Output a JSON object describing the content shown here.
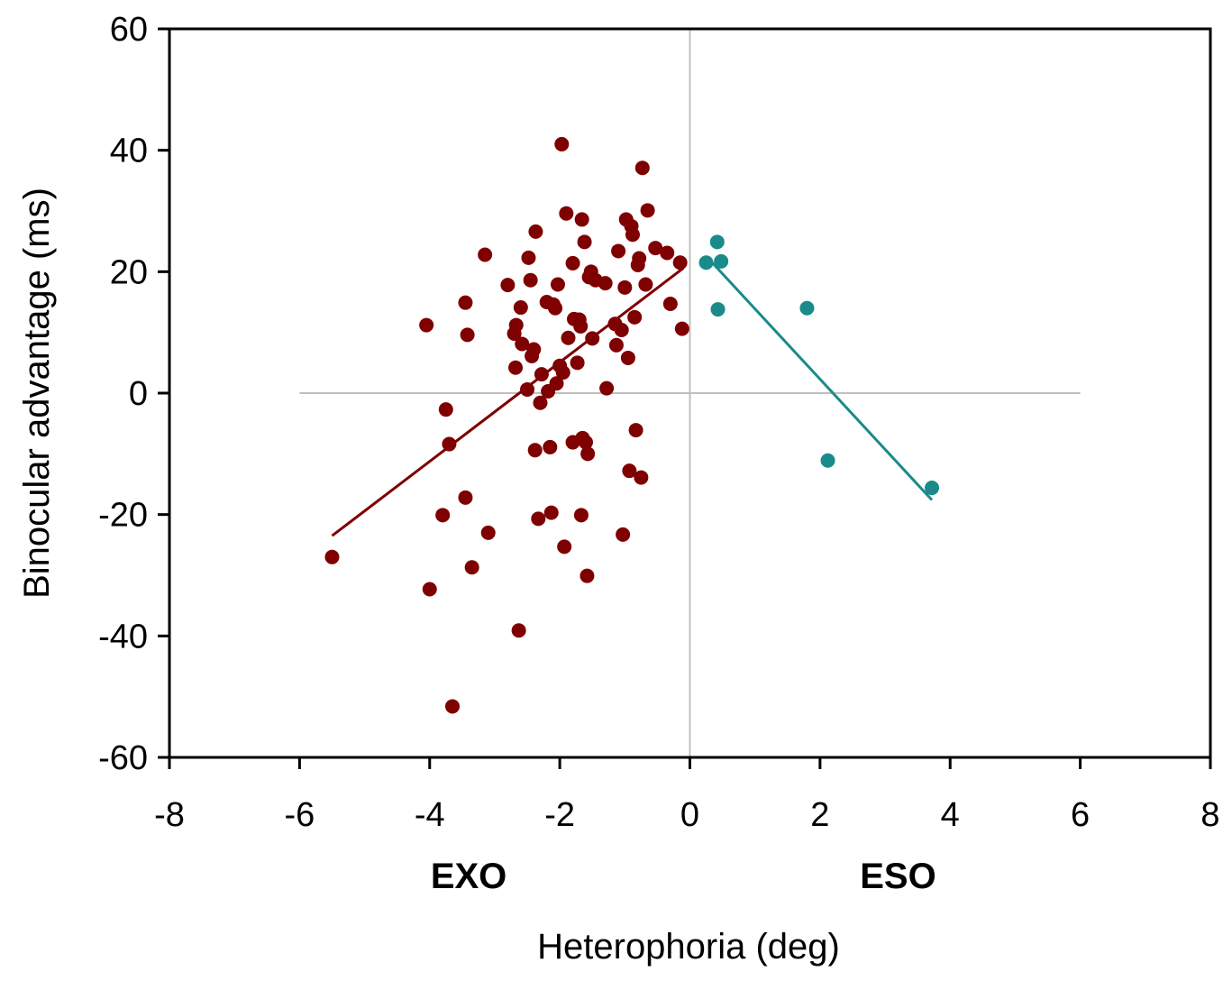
{
  "chart_data": {
    "type": "scatter",
    "title": "",
    "xlabel": "Heterophoria (deg)",
    "ylabel": "Binocular advantage (ms)",
    "xlim": [
      -8,
      8
    ],
    "ylim": [
      -60,
      60
    ],
    "xticks": [
      -8,
      -6,
      -4,
      -2,
      0,
      2,
      4,
      6,
      8
    ],
    "yticks": [
      -60,
      -40,
      -20,
      0,
      20,
      40,
      60
    ],
    "grid": false,
    "reference_lines": {
      "x": 0,
      "y": 0,
      "x_span": [
        -6,
        6
      ],
      "color": "#c0c0c0"
    },
    "annotations": [
      {
        "text": "EXO",
        "x": -3.4
      },
      {
        "text": "ESO",
        "x": 3.2
      }
    ],
    "series": [
      {
        "color": "#7f0000",
        "points": [
          [
            -5.5,
            -27
          ],
          [
            -4.05,
            11.2
          ],
          [
            -4.0,
            -32.3
          ],
          [
            -3.8,
            -20.1
          ],
          [
            -3.75,
            -2.7
          ],
          [
            -3.7,
            -8.4
          ],
          [
            -3.65,
            -51.6
          ],
          [
            -3.45,
            14.9
          ],
          [
            -3.45,
            -17.2
          ],
          [
            -3.42,
            9.6
          ],
          [
            -3.35,
            -28.7
          ],
          [
            -3.15,
            22.8
          ],
          [
            -3.1,
            -23
          ],
          [
            -2.8,
            17.8
          ],
          [
            -2.7,
            9.8
          ],
          [
            -2.68,
            4.2
          ],
          [
            -2.67,
            11.2
          ],
          [
            -2.63,
            -39.1
          ],
          [
            -2.6,
            14.1
          ],
          [
            -2.58,
            8.1
          ],
          [
            -2.5,
            0.6
          ],
          [
            -2.48,
            22.3
          ],
          [
            -2.45,
            18.6
          ],
          [
            -2.43,
            6.1
          ],
          [
            -2.4,
            7.2
          ],
          [
            -2.38,
            -9.4
          ],
          [
            -2.37,
            26.6
          ],
          [
            -2.33,
            -20.7
          ],
          [
            -2.3,
            -1.6
          ],
          [
            -2.28,
            3.1
          ],
          [
            -2.2,
            15.0
          ],
          [
            -2.18,
            0.3
          ],
          [
            -2.15,
            -8.9
          ],
          [
            -2.13,
            -19.7
          ],
          [
            -2.1,
            14.6
          ],
          [
            -2.07,
            14.0
          ],
          [
            -2.05,
            1.6
          ],
          [
            -2.03,
            17.9
          ],
          [
            -2.0,
            4.5
          ],
          [
            -1.97,
            41
          ],
          [
            -1.95,
            3.4
          ],
          [
            -1.93,
            -25.3
          ],
          [
            -1.9,
            29.6
          ],
          [
            -1.87,
            9.1
          ],
          [
            -1.8,
            21.4
          ],
          [
            -1.8,
            -8.1
          ],
          [
            -1.78,
            12.2
          ],
          [
            -1.73,
            5.0
          ],
          [
            -1.7,
            12.1
          ],
          [
            -1.68,
            11.0
          ],
          [
            -1.67,
            -20.1
          ],
          [
            -1.66,
            28.6
          ],
          [
            -1.65,
            -7.4
          ],
          [
            -1.62,
            24.9
          ],
          [
            -1.6,
            -8.1
          ],
          [
            -1.58,
            -30.1
          ],
          [
            -1.57,
            -10.0
          ],
          [
            -1.55,
            19.1
          ],
          [
            -1.52,
            20.0
          ],
          [
            -1.5,
            9.0
          ],
          [
            -1.45,
            18.6
          ],
          [
            -1.3,
            18.1
          ],
          [
            -1.28,
            0.8
          ],
          [
            -1.15,
            11.4
          ],
          [
            -1.13,
            7.9
          ],
          [
            -1.1,
            23.4
          ],
          [
            -1.05,
            10.4
          ],
          [
            -1.03,
            -23.3
          ],
          [
            -1.0,
            17.4
          ],
          [
            -0.98,
            28.6
          ],
          [
            -0.95,
            5.8
          ],
          [
            -0.93,
            -12.8
          ],
          [
            -0.9,
            27.5
          ],
          [
            -0.88,
            26.1
          ],
          [
            -0.85,
            12.5
          ],
          [
            -0.83,
            -6.1
          ],
          [
            -0.8,
            21.1
          ],
          [
            -0.78,
            22.2
          ],
          [
            -0.75,
            -13.9
          ],
          [
            -0.73,
            37.1
          ],
          [
            -0.68,
            17.9
          ],
          [
            -0.65,
            30.1
          ],
          [
            -0.53,
            23.9
          ],
          [
            -0.35,
            23.1
          ],
          [
            -0.3,
            14.7
          ],
          [
            -0.15,
            21.5
          ],
          [
            -0.12,
            10.6
          ]
        ],
        "fit": {
          "x": [
            -5.5,
            -0.1
          ],
          "y": [
            -23.5,
            20.6
          ]
        }
      },
      {
        "color": "#1a8a8a",
        "points": [
          [
            0.25,
            21.5
          ],
          [
            0.42,
            24.9
          ],
          [
            0.43,
            13.8
          ],
          [
            0.48,
            21.7
          ],
          [
            1.8,
            14
          ],
          [
            2.12,
            -11.1
          ],
          [
            3.72,
            -15.6
          ]
        ],
        "fit": {
          "x": [
            0.35,
            3.72
          ],
          "y": [
            21.4,
            -17.6
          ]
        }
      }
    ]
  }
}
